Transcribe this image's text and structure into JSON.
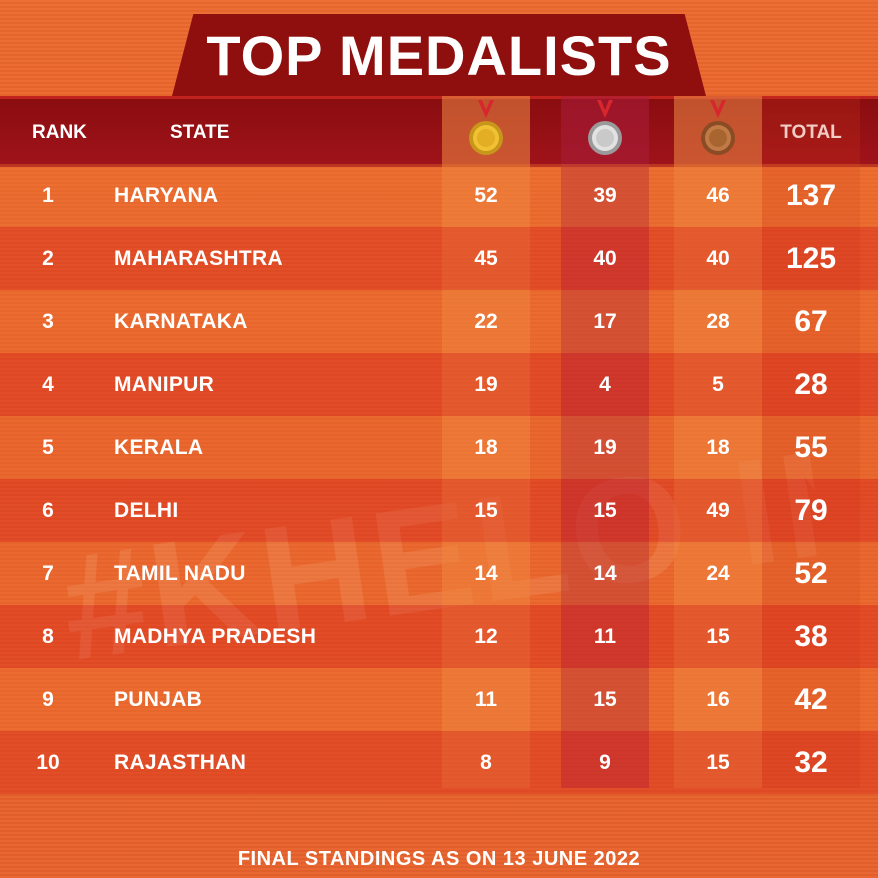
{
  "title": "TOP MEDALISTS",
  "header": {
    "rank": "RANK",
    "state": "STATE",
    "total": "TOTAL",
    "gold_icon": "gold-medal-icon",
    "silver_icon": "silver-medal-icon",
    "bronze_icon": "bronze-medal-icon"
  },
  "colors": {
    "background": "#e8602a",
    "banner": "#8e0f0d",
    "gold": "#e6b422",
    "silver": "#c8c8c8",
    "bronze": "#b06a3a"
  },
  "rows": [
    {
      "rank": "1",
      "state": "HARYANA",
      "gold": "52",
      "silver": "39",
      "bronze": "46",
      "total": "137"
    },
    {
      "rank": "2",
      "state": "MAHARASHTRA",
      "gold": "45",
      "silver": "40",
      "bronze": "40",
      "total": "125"
    },
    {
      "rank": "3",
      "state": "KARNATAKA",
      "gold": "22",
      "silver": "17",
      "bronze": "28",
      "total": "67"
    },
    {
      "rank": "4",
      "state": "MANIPUR",
      "gold": "19",
      "silver": "4",
      "bronze": "5",
      "total": "28"
    },
    {
      "rank": "5",
      "state": "KERALA",
      "gold": "18",
      "silver": "19",
      "bronze": "18",
      "total": "55"
    },
    {
      "rank": "6",
      "state": "DELHI",
      "gold": "15",
      "silver": "15",
      "bronze": "49",
      "total": "79"
    },
    {
      "rank": "7",
      "state": "TAMIL NADU",
      "gold": "14",
      "silver": "14",
      "bronze": "24",
      "total": "52"
    },
    {
      "rank": "8",
      "state": "MADHYA PRADESH",
      "gold": "12",
      "silver": "11",
      "bronze": "15",
      "total": "38"
    },
    {
      "rank": "9",
      "state": "PUNJAB",
      "gold": "11",
      "silver": "15",
      "bronze": "16",
      "total": "42"
    },
    {
      "rank": "10",
      "state": "RAJASTHAN",
      "gold": "8",
      "silver": "9",
      "bronze": "15",
      "total": "32"
    }
  ],
  "watermark": "#KHELO INDIA",
  "footer": "FINAL STANDINGS AS ON 13 JUNE 2022"
}
